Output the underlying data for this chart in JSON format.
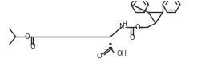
{
  "bg_color": "#ffffff",
  "line_color": "#2a2a2a",
  "line_width": 1.0,
  "figsize": [
    2.76,
    0.98
  ],
  "dpi": 100,
  "xlim": [
    0,
    276
  ],
  "ylim": [
    0,
    98
  ]
}
